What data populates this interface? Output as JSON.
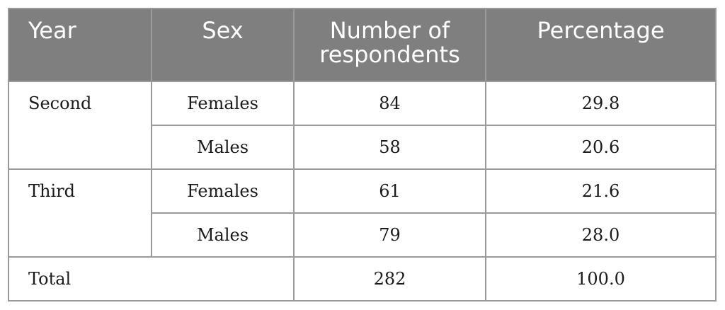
{
  "table": {
    "headers": {
      "year": "Year",
      "sex": "Sex",
      "number": "Number of respondents",
      "percentage": "Percentage"
    },
    "groups": [
      {
        "year": "Second",
        "rows": [
          {
            "sex": "Females",
            "number": "84",
            "percentage": "29.8"
          },
          {
            "sex": "Males",
            "number": "58",
            "percentage": "20.6"
          }
        ]
      },
      {
        "year": "Third",
        "rows": [
          {
            "sex": "Females",
            "number": "61",
            "percentage": "21.6"
          },
          {
            "sex": "Males",
            "number": "79",
            "percentage": "28.0"
          }
        ]
      }
    ],
    "total": {
      "label": "Total",
      "number": "282",
      "percentage": "100.0"
    }
  }
}
